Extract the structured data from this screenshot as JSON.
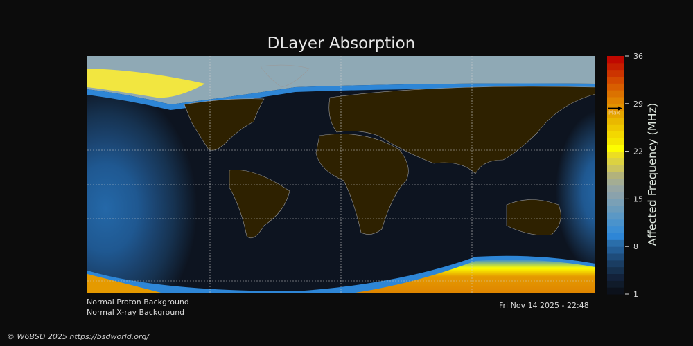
{
  "chart_data": {
    "type": "heatmap",
    "title": "DLayer Absorption",
    "colorbar": {
      "label": "Affected Frequency (MHz)",
      "ticks": [
        36,
        29,
        22,
        15,
        8,
        1
      ],
      "range": [
        1,
        36
      ],
      "max_marker": {
        "label": "Max",
        "value": 28.3
      },
      "colors": [
        "#0c111b",
        "#101b2a",
        "#13223a",
        "#16304d",
        "#1a3d62",
        "#1e4c7b",
        "#235d95",
        "#2a6eaa",
        "#2e86d6",
        "#3b8ed4",
        "#4a93cc",
        "#5b98c5",
        "#6b9cbc",
        "#7aa0b6",
        "#8aa2ac",
        "#96a6a4",
        "#a4ad93",
        "#b2b27c",
        "#cbc45e",
        "#dcd241",
        "#ecde22",
        "#fdfd00",
        "#f5e600",
        "#f3d800",
        "#eec800",
        "#e9b800",
        "#e5a600",
        "#e39200",
        "#e08400",
        "#db7200",
        "#d85e00",
        "#d34a00",
        "#cc3400",
        "#c51e00",
        "#c00800"
      ]
    },
    "map": {
      "colors": {
        "night": "#0d1420",
        "land": "#2e2100",
        "polar": "#8fa9b5",
        "coast": "#9a9a9a"
      }
    }
  },
  "status": {
    "proton": "Normal Proton Background",
    "xray": "Normal X-ray Background",
    "timestamp": "Fri Nov 14 2025 - 22:48"
  },
  "footer": "© W6BSD 2025 https://bsdworld.org/"
}
